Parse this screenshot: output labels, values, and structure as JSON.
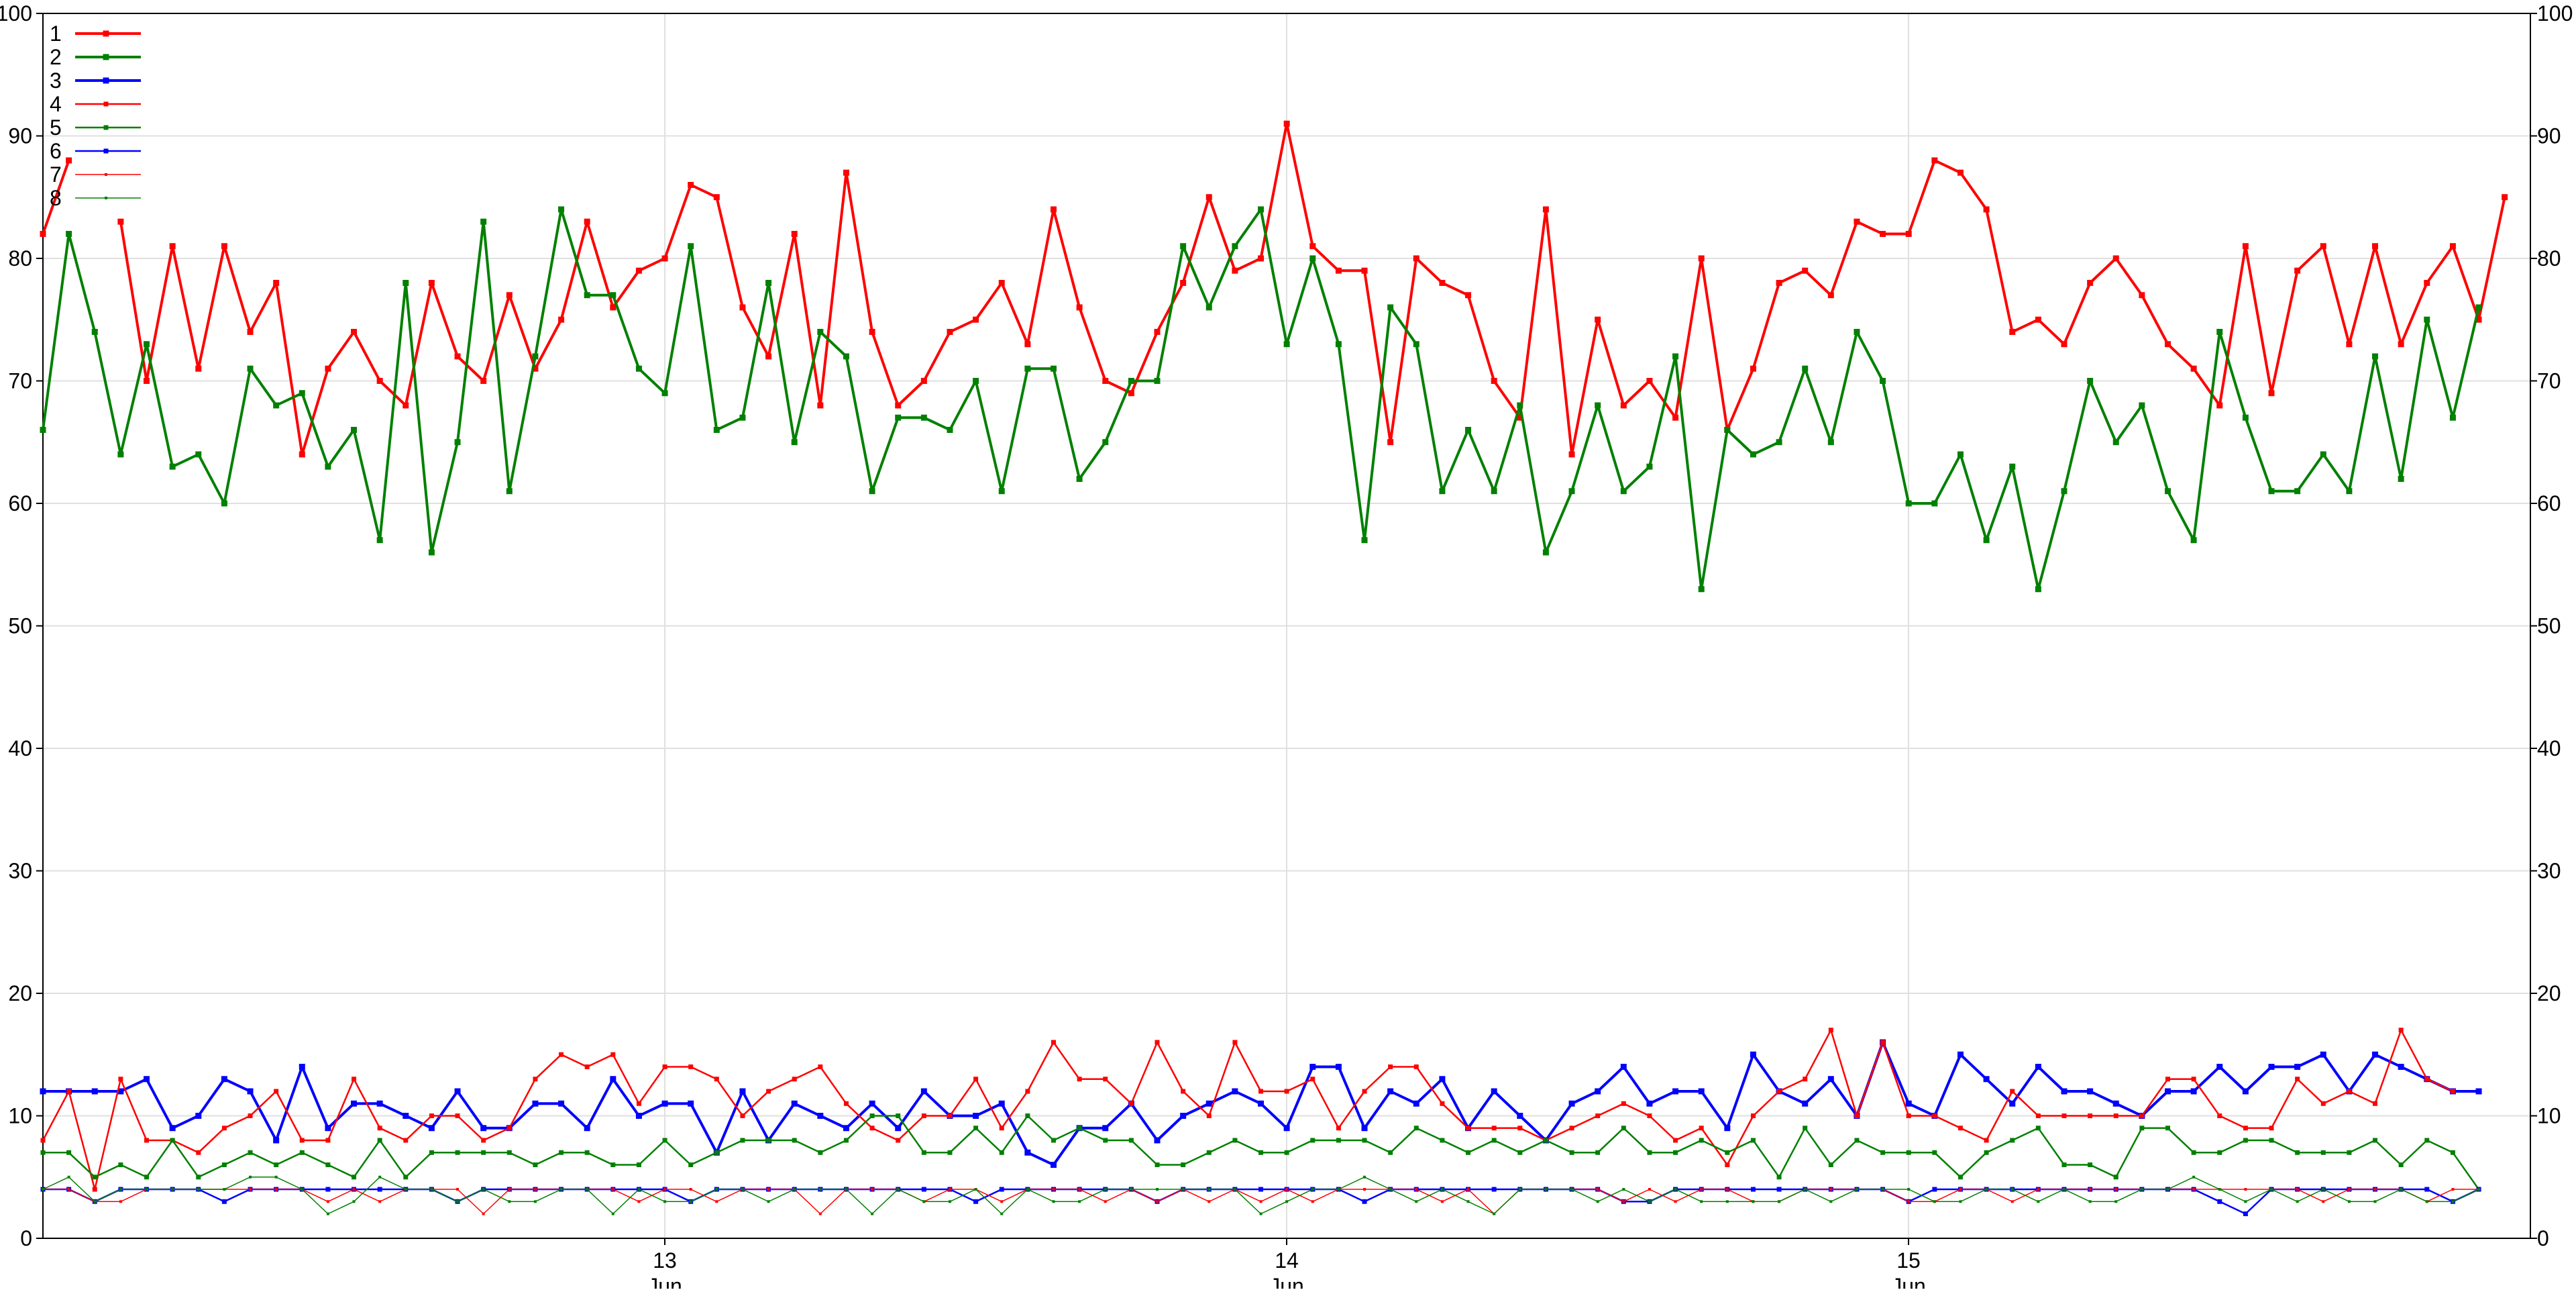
{
  "chart_data": {
    "type": "line",
    "title": "",
    "xlabel": "",
    "ylabel": "",
    "ylim": [
      0,
      100
    ],
    "y_ticks": [
      0,
      10,
      20,
      30,
      40,
      50,
      60,
      70,
      80,
      90,
      100
    ],
    "y_axis_both_sides": true,
    "grid": true,
    "legend": "top-left",
    "x_range_days": [
      12.0,
      16.0
    ],
    "x_ticks": [
      {
        "day": 13,
        "label_top": "13",
        "label_bottom": "Jun"
      },
      {
        "day": 14,
        "label_top": "14",
        "label_bottom": "Jun"
      },
      {
        "day": 15,
        "label_top": "15",
        "label_bottom": "Jun"
      }
    ],
    "x_step_days": 0.04167,
    "series": [
      {
        "name": "1",
        "color": "#ff0000",
        "style": "thick",
        "values": [
          82,
          88,
          null,
          83,
          70,
          81,
          71,
          81,
          74,
          78,
          64,
          71,
          74,
          70,
          68,
          78,
          72,
          70,
          77,
          71,
          75,
          83,
          76,
          79,
          80,
          86,
          85,
          76,
          72,
          82,
          68,
          87,
          74,
          68,
          70,
          74,
          75,
          78,
          73,
          84,
          76,
          70,
          69,
          74,
          78,
          85,
          79,
          80,
          91,
          81,
          79,
          79,
          65,
          80,
          78,
          77,
          70,
          67,
          84,
          64,
          75,
          68,
          70,
          67,
          80,
          66,
          71,
          78,
          79,
          77,
          83,
          82,
          82,
          88,
          87,
          84,
          74,
          75,
          73,
          78,
          80,
          77,
          73,
          71,
          68,
          81,
          69,
          79,
          81,
          73,
          81,
          73,
          78,
          81,
          75,
          85
        ]
      },
      {
        "name": "2",
        "color": "#008000",
        "style": "thick",
        "values": [
          66,
          82,
          74,
          64,
          73,
          63,
          64,
          60,
          71,
          68,
          69,
          63,
          66,
          57,
          78,
          56,
          65,
          83,
          61,
          72,
          84,
          77,
          77,
          71,
          69,
          81,
          66,
          67,
          78,
          65,
          74,
          72,
          61,
          67,
          67,
          66,
          70,
          61,
          71,
          71,
          62,
          65,
          70,
          70,
          81,
          76,
          81,
          84,
          73,
          80,
          73,
          57,
          76,
          73,
          61,
          66,
          61,
          68,
          56,
          61,
          68,
          61,
          63,
          72,
          53,
          66,
          64,
          65,
          71,
          65,
          74,
          70,
          60,
          60,
          64,
          57,
          63,
          53,
          61,
          70,
          65,
          68,
          61,
          57,
          74,
          67,
          61,
          61,
          64,
          61,
          72,
          62,
          75,
          67,
          76
        ]
      },
      {
        "name": "3",
        "color": "#0000ff",
        "style": "thick",
        "values": [
          12,
          12,
          12,
          12,
          13,
          9,
          10,
          13,
          12,
          8,
          14,
          9,
          11,
          11,
          10,
          9,
          12,
          9,
          9,
          11,
          11,
          9,
          13,
          10,
          11,
          11,
          7,
          12,
          8,
          11,
          10,
          9,
          11,
          9,
          12,
          10,
          10,
          11,
          7,
          6,
          9,
          9,
          11,
          8,
          10,
          11,
          12,
          11,
          9,
          14,
          14,
          9,
          12,
          11,
          13,
          9,
          12,
          10,
          8,
          11,
          12,
          14,
          11,
          12,
          12,
          9,
          15,
          12,
          11,
          13,
          10,
          16,
          11,
          10,
          15,
          13,
          11,
          14,
          12,
          12,
          11,
          10,
          12,
          12,
          14,
          12,
          14,
          14,
          15,
          12,
          15,
          14,
          13,
          12,
          12
        ]
      },
      {
        "name": "4",
        "color": "#ff0000",
        "style": "thin",
        "values": [
          8,
          12,
          4,
          13,
          8,
          8,
          7,
          9,
          10,
          12,
          8,
          8,
          13,
          9,
          8,
          10,
          10,
          8,
          9,
          13,
          15,
          14,
          15,
          11,
          14,
          14,
          13,
          10,
          12,
          13,
          14,
          11,
          9,
          8,
          10,
          10,
          13,
          9,
          12,
          16,
          13,
          13,
          11,
          16,
          12,
          10,
          16,
          12,
          12,
          13,
          9,
          12,
          14,
          14,
          11,
          9,
          9,
          9,
          8,
          9,
          10,
          11,
          10,
          8,
          9,
          6,
          10,
          12,
          13,
          17,
          10,
          16,
          10,
          10,
          9,
          8,
          12,
          10,
          10,
          10,
          10,
          10,
          13,
          13,
          10,
          9,
          9,
          13,
          11,
          12,
          11,
          17,
          13,
          12
        ]
      },
      {
        "name": "5",
        "color": "#008000",
        "style": "thin",
        "values": [
          7,
          7,
          5,
          6,
          5,
          8,
          5,
          6,
          7,
          6,
          7,
          6,
          5,
          8,
          5,
          7,
          7,
          7,
          7,
          6,
          7,
          7,
          6,
          6,
          8,
          6,
          7,
          8,
          8,
          8,
          7,
          8,
          10,
          10,
          7,
          7,
          9,
          7,
          10,
          8,
          9,
          8,
          8,
          6,
          6,
          7,
          8,
          7,
          7,
          8,
          8,
          8,
          7,
          9,
          8,
          7,
          8,
          7,
          8,
          7,
          7,
          9,
          7,
          7,
          8,
          7,
          8,
          5,
          9,
          6,
          8,
          7,
          7,
          7,
          5,
          7,
          8,
          9,
          6,
          6,
          5,
          9,
          9,
          7,
          7,
          8,
          8,
          7,
          7,
          7,
          8,
          6,
          8,
          7,
          4
        ]
      },
      {
        "name": "6",
        "color": "#0000ff",
        "style": "thin",
        "values": [
          4,
          4,
          3,
          4,
          4,
          4,
          4,
          3,
          4,
          4,
          4,
          4,
          4,
          4,
          4,
          4,
          3,
          4,
          4,
          4,
          4,
          4,
          4,
          4,
          4,
          3,
          4,
          4,
          4,
          4,
          4,
          4,
          4,
          4,
          4,
          4,
          3,
          4,
          4,
          4,
          4,
          4,
          4,
          3,
          4,
          4,
          4,
          4,
          4,
          4,
          4,
          3,
          4,
          4,
          4,
          4,
          4,
          4,
          4,
          4,
          4,
          3,
          3,
          4,
          4,
          4,
          4,
          4,
          4,
          4,
          4,
          4,
          3,
          4,
          4,
          4,
          4,
          4,
          4,
          4,
          4,
          4,
          4,
          4,
          3,
          2,
          4,
          4,
          4,
          4,
          4,
          4,
          4,
          3,
          4
        ]
      },
      {
        "name": "7",
        "color": "#ff0000",
        "style": "hair",
        "values": [
          4,
          4,
          3,
          3,
          4,
          4,
          4,
          4,
          4,
          4,
          4,
          3,
          4,
          3,
          4,
          4,
          4,
          2,
          4,
          4,
          4,
          4,
          4,
          3,
          4,
          4,
          3,
          4,
          4,
          4,
          2,
          4,
          4,
          4,
          3,
          4,
          4,
          3,
          4,
          4,
          4,
          3,
          4,
          3,
          4,
          3,
          4,
          3,
          4,
          3,
          4,
          4,
          4,
          4,
          3,
          4,
          2,
          4,
          4,
          4,
          4,
          3,
          4,
          3,
          4,
          4,
          3,
          3,
          4,
          4,
          4,
          4,
          3,
          3,
          4,
          4,
          3,
          4,
          4,
          4,
          4,
          4,
          4,
          4,
          4,
          4,
          4,
          4,
          3,
          4,
          4,
          4,
          3,
          4,
          4
        ]
      },
      {
        "name": "8",
        "color": "#008000",
        "style": "hair",
        "values": [
          4,
          5,
          3,
          4,
          4,
          4,
          4,
          4,
          5,
          5,
          4,
          2,
          3,
          5,
          4,
          4,
          3,
          4,
          3,
          3,
          4,
          4,
          2,
          4,
          3,
          3,
          4,
          4,
          3,
          4,
          4,
          4,
          2,
          4,
          3,
          3,
          4,
          2,
          4,
          3,
          3,
          4,
          4,
          4,
          4,
          4,
          4,
          2,
          3,
          4,
          4,
          5,
          4,
          3,
          4,
          3,
          2,
          4,
          4,
          4,
          3,
          4,
          3,
          4,
          3,
          3,
          3,
          3,
          4,
          3,
          4,
          4,
          4,
          3,
          3,
          4,
          4,
          3,
          4,
          3,
          3,
          4,
          4,
          5,
          4,
          3,
          4,
          3,
          4,
          3,
          3,
          4,
          3,
          3,
          4
        ]
      }
    ]
  }
}
